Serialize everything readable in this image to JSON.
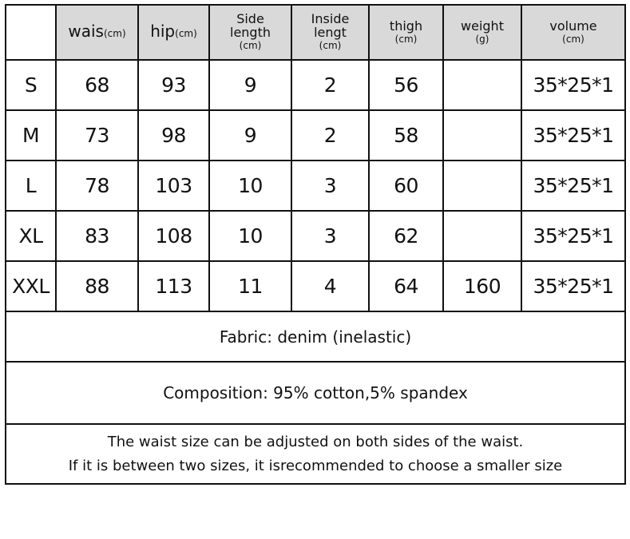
{
  "header": {
    "waist": {
      "label": "wais",
      "unit": "(cm)"
    },
    "hip": {
      "label": "hip",
      "unit": "(cm)"
    },
    "side_length": {
      "label1": "Side",
      "label2": "length",
      "unit": "(cm)"
    },
    "inside_length": {
      "label1": "Inside",
      "label2": "lengt",
      "unit": "(cm)"
    },
    "thigh": {
      "label": "thigh",
      "unit": "(cm)"
    },
    "weight": {
      "label": "weight",
      "unit": "(g)"
    },
    "volume": {
      "label": "volume",
      "unit": "(cm)"
    }
  },
  "rows": [
    [
      "S",
      "68",
      "93",
      "9",
      "2",
      "56",
      "",
      "35*25*1"
    ],
    [
      "M",
      "73",
      "98",
      "9",
      "2",
      "58",
      "",
      "35*25*1"
    ],
    [
      "L",
      "78",
      "103",
      "10",
      "3",
      "60",
      "",
      "35*25*1"
    ],
    [
      "XL",
      "83",
      "108",
      "10",
      "3",
      "62",
      "",
      "35*25*1"
    ],
    [
      "XXL",
      "88",
      "113",
      "11",
      "4",
      "64",
      "160",
      "35*25*1"
    ]
  ],
  "fabric": "Fabric: denim (inelastic)",
  "composition": "Composition: 95% cotton,5% spandex",
  "note_line1": "The waist size can be adjusted on both sides of the waist.",
  "note_line2": "If it is between two sizes, it isrecommended to choose a smaller size",
  "colors": {
    "header_bg": "#d9d9d9",
    "border": "#111111"
  }
}
